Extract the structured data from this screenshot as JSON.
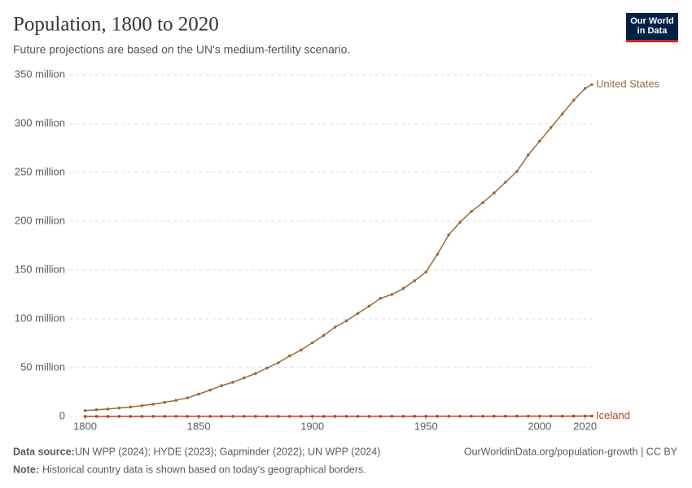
{
  "chart_data": {
    "type": "line",
    "title": "Population, 1800 to 2020",
    "subtitle": "Future projections are based on the UN's medium-fertility scenario.",
    "logo": "Our World in Data",
    "source_label": "Data source:",
    "source": "UN WPP (2024); HYDE (2023); Gapminder (2022); UN WPP (2024)",
    "note_label": "Note:",
    "note": "Historical country data is shown based on today's geographical borders.",
    "url": "OurWorldinData.org/population-growth | CC BY",
    "x": [
      1800,
      1805,
      1810,
      1815,
      1820,
      1825,
      1830,
      1835,
      1840,
      1845,
      1850,
      1855,
      1860,
      1865,
      1870,
      1875,
      1880,
      1885,
      1890,
      1895,
      1900,
      1905,
      1910,
      1915,
      1920,
      1925,
      1930,
      1935,
      1940,
      1945,
      1950,
      1955,
      1960,
      1965,
      1970,
      1975,
      1980,
      1985,
      1990,
      1995,
      2000,
      2005,
      2010,
      2015,
      2020,
      2023
    ],
    "series": [
      {
        "name": "United States",
        "color": "#9a6b3c",
        "values": [
          6000000,
          6800000,
          7600000,
          8600000,
          9700000,
          11000000,
          12600000,
          14400000,
          16500000,
          19000000,
          22900000,
          27000000,
          31500000,
          35000000,
          39500000,
          44000000,
          49500000,
          55000000,
          62000000,
          68000000,
          75500000,
          83000000,
          91500000,
          98000000,
          105500000,
          113000000,
          121000000,
          125000000,
          131000000,
          139000000,
          148000000,
          166000000,
          186000000,
          199000000,
          210000000,
          219000000,
          229000000,
          240000000,
          251000000,
          268000000,
          282000000,
          296000000,
          310000000,
          324000000,
          336000000,
          340000000
        ]
      },
      {
        "name": "Iceland",
        "color": "#b8441d",
        "values": [
          47000,
          47000,
          48000,
          49000,
          50000,
          52000,
          55000,
          57000,
          57000,
          58000,
          59000,
          64000,
          67000,
          70000,
          70000,
          72000,
          72000,
          71000,
          71000,
          75000,
          78000,
          80000,
          85000,
          89000,
          94000,
          100000,
          109000,
          115000,
          121000,
          130000,
          143000,
          158000,
          176000,
          192000,
          205000,
          218000,
          228000,
          241000,
          255000,
          267000,
          281000,
          296000,
          318000,
          331000,
          366000,
          390000
        ]
      }
    ],
    "xlim": [
      1793,
      2023
    ],
    "xticks": [
      1800,
      1850,
      1900,
      1950,
      2000,
      2020
    ],
    "ylim": [
      0,
      350000000
    ],
    "yticks": [
      {
        "value": 0,
        "label": "0"
      },
      {
        "value": 50000000,
        "label": "50 million"
      },
      {
        "value": 100000000,
        "label": "100 million"
      },
      {
        "value": 150000000,
        "label": "150 million"
      },
      {
        "value": 200000000,
        "label": "200 million"
      },
      {
        "value": 250000000,
        "label": "250 million"
      },
      {
        "value": 300000000,
        "label": "300 million"
      },
      {
        "value": 350000000,
        "label": "350 million"
      }
    ],
    "grid": true
  }
}
